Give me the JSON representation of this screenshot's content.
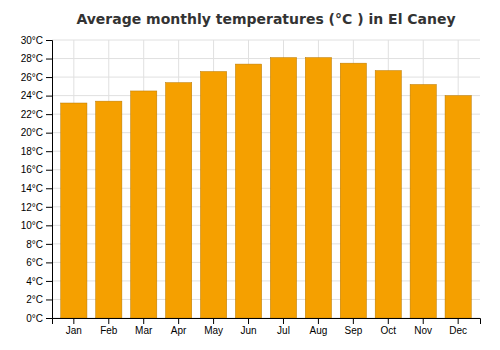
{
  "chart_data": {
    "type": "bar",
    "title": "Average monthly temperatures (°C ) in El Caney",
    "categories": [
      "Jan",
      "Feb",
      "Mar",
      "Apr",
      "May",
      "Jun",
      "Jul",
      "Aug",
      "Sep",
      "Oct",
      "Nov",
      "Dec"
    ],
    "values": [
      23.2,
      23.4,
      24.5,
      25.4,
      26.6,
      27.4,
      28.1,
      28.1,
      27.5,
      26.7,
      25.2,
      24.0
    ],
    "color": "#F5A000",
    "ylim": [
      0,
      30
    ],
    "yticks": [
      {
        "value": 0,
        "label": "0°C"
      },
      {
        "value": 2,
        "label": "2°C"
      },
      {
        "value": 4,
        "label": "4°C"
      },
      {
        "value": 6,
        "label": "6°C"
      },
      {
        "value": 8,
        "label": "8°C"
      },
      {
        "value": 10,
        "label": "10°C"
      },
      {
        "value": 12,
        "label": "12°C"
      },
      {
        "value": 14,
        "label": "14°C"
      },
      {
        "value": 16,
        "label": "16°C"
      },
      {
        "value": 18,
        "label": "18°C"
      },
      {
        "value": 20,
        "label": "20°C"
      },
      {
        "value": 22,
        "label": "22°C"
      },
      {
        "value": 24,
        "label": "24°C"
      },
      {
        "value": 26,
        "label": "26°C"
      },
      {
        "value": 28,
        "label": "28°C"
      },
      {
        "value": 30,
        "label": "30°C"
      }
    ],
    "grid": true
  }
}
